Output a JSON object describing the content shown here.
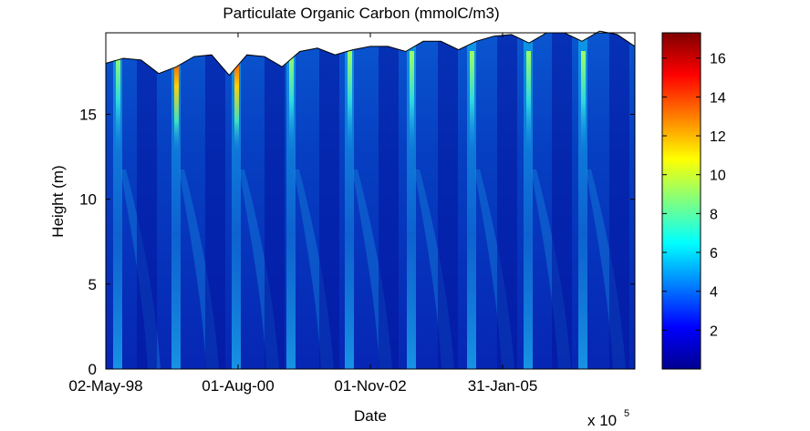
{
  "chart_data": {
    "type": "heatmap",
    "title": "Particulate Organic Carbon (mmolC/m3)",
    "xlabel": "Date",
    "ylabel": "Height (m)",
    "x_ticks": [
      "02-May-98",
      "01-Aug-00",
      "01-Nov-02",
      "31-Jan-05"
    ],
    "x_exponent_label": "x 10",
    "x_exponent": "5",
    "y_ticks": [
      0,
      5,
      10,
      15
    ],
    "ylim": [
      0,
      19.8
    ],
    "colormap": "jet",
    "colorbar": {
      "range": [
        0,
        17.3
      ],
      "ticks": [
        2,
        4,
        6,
        8,
        10,
        12,
        14,
        16
      ]
    },
    "surface_height_m": [
      18.0,
      18.3,
      18.2,
      17.4,
      17.8,
      18.4,
      18.5,
      17.3,
      18.5,
      18.4,
      17.8,
      18.7,
      18.9,
      18.5,
      18.8,
      19.0,
      19.0,
      18.7,
      19.3,
      19.3,
      18.8,
      19.3,
      19.6,
      19.7,
      19.2,
      19.8,
      19.8,
      19.3,
      19.9,
      19.7,
      19.0
    ]
  },
  "colors": {
    "background": "#ffffff",
    "low": "#00008f",
    "mid": "#0f6ad6",
    "high": "#800000"
  }
}
